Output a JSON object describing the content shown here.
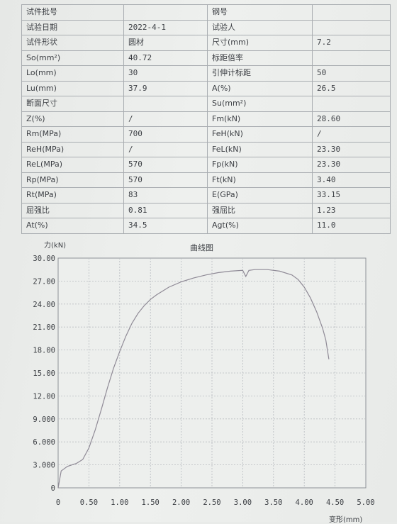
{
  "table": {
    "rows": [
      {
        "l1": "试件批号",
        "v1": "",
        "l2": "钢号",
        "v2": ""
      },
      {
        "l1": "试验日期",
        "v1": "2022-4-1",
        "l2": "试验人",
        "v2": ""
      },
      {
        "l1": "试件形状",
        "v1": "圆材",
        "l2": "尺寸(mm)",
        "v2": "7.2"
      },
      {
        "l1": "So(mm²)",
        "v1": "40.72",
        "l2": "标距倍率",
        "v2": ""
      },
      {
        "l1": "Lo(mm)",
        "v1": "30",
        "l2": "引伸计标距",
        "v2": "50"
      },
      {
        "l1": "Lu(mm)",
        "v1": "37.9",
        "l2": "A(%)",
        "v2": "26.5"
      },
      {
        "l1": "断面尺寸",
        "v1": "",
        "l2": "Su(mm²)",
        "v2": ""
      },
      {
        "l1": "Z(%)",
        "v1": "/",
        "l2": "Fm(kN)",
        "v2": "28.60"
      },
      {
        "l1": "Rm(MPa)",
        "v1": "700",
        "l2": "FeH(kN)",
        "v2": "/"
      },
      {
        "l1": "ReH(MPa)",
        "v1": "/",
        "l2": "FeL(kN)",
        "v2": "23.30"
      },
      {
        "l1": "ReL(MPa)",
        "v1": "570",
        "l2": "Fp(kN)",
        "v2": "23.30"
      },
      {
        "l1": "Rp(MPa)",
        "v1": "570",
        "l2": "Ft(kN)",
        "v2": "3.40"
      },
      {
        "l1": "Rt(MPa)",
        "v1": "83",
        "l2": "E(GPa)",
        "v2": "33.15"
      },
      {
        "l1": "屈强比",
        "v1": "0.81",
        "l2": "强屈比",
        "v2": "1.23"
      },
      {
        "l1": "At(%)",
        "v1": "34.5",
        "l2": "Agt(%)",
        "v2": "11.0"
      }
    ]
  },
  "chart_data": {
    "type": "line",
    "title": "曲线图",
    "ylabel": "力(kN)",
    "xlabel": "变形(mm)",
    "xlim": [
      0,
      5
    ],
    "ylim": [
      0,
      30
    ],
    "x_ticks": [
      "0",
      "0.50",
      "1.00",
      "1.50",
      "2.00",
      "2.50",
      "3.00",
      "3.50",
      "4.00",
      "4.50",
      "5.00"
    ],
    "y_ticks": [
      "0",
      "3.000",
      "6.000",
      "9.000",
      "12.00",
      "15.00",
      "18.00",
      "21.00",
      "24.00",
      "27.00",
      "30.00"
    ],
    "grid": true,
    "series": [
      {
        "x": [
          0,
          0.05,
          0.15,
          0.3,
          0.4,
          0.5,
          0.6,
          0.7,
          0.8,
          0.9,
          1.0,
          1.1,
          1.2,
          1.3,
          1.4,
          1.5,
          1.6,
          1.8,
          2.0,
          2.2,
          2.4,
          2.6,
          2.8,
          3.0,
          3.05,
          3.1,
          3.2,
          3.4,
          3.6,
          3.8,
          3.9,
          4.0,
          4.1,
          4.2,
          4.3,
          4.35,
          4.4
        ],
        "y": [
          0,
          2.2,
          2.8,
          3.2,
          3.7,
          5.2,
          7.5,
          10.2,
          13.0,
          15.6,
          17.8,
          19.8,
          21.5,
          22.8,
          23.8,
          24.6,
          25.2,
          26.2,
          26.9,
          27.4,
          27.8,
          28.1,
          28.3,
          28.4,
          27.6,
          28.4,
          28.5,
          28.5,
          28.3,
          27.8,
          27.2,
          26.2,
          24.8,
          23.0,
          20.8,
          19.3,
          16.8
        ]
      }
    ]
  }
}
